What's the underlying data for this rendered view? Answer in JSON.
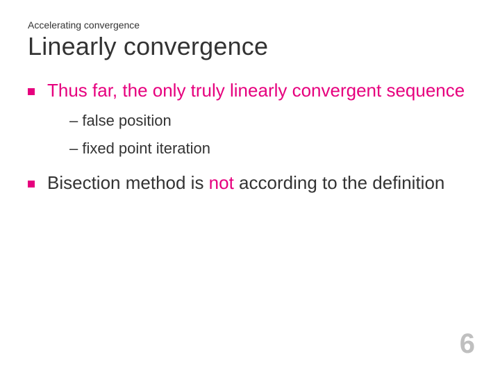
{
  "slide": {
    "supertitle": "Accelerating convergence",
    "title": "Linearly convergence",
    "bullets": [
      {
        "marker_color": "#e6007e",
        "text_highlight": "Thus far, the only truly linearly convergent sequence",
        "sub_items": [
          "– false position",
          "– fixed point iteration"
        ]
      },
      {
        "marker_color": "#e6007e",
        "segments": {
          "before": "Bisection method is ",
          "not": "not",
          "after": " according to the definition"
        }
      }
    ],
    "page_number": "6"
  },
  "colors": {
    "highlight": "#e6007e",
    "text": "#333333",
    "page_num": "#bfbfbf",
    "background": "#ffffff"
  },
  "typography": {
    "supertitle_fontsize": 14,
    "title_fontsize": 36,
    "bullet_fontsize": 26,
    "subitem_fontsize": 22,
    "pagenum_fontsize": 40,
    "font_family": "Verdana, Geneva, sans-serif"
  }
}
